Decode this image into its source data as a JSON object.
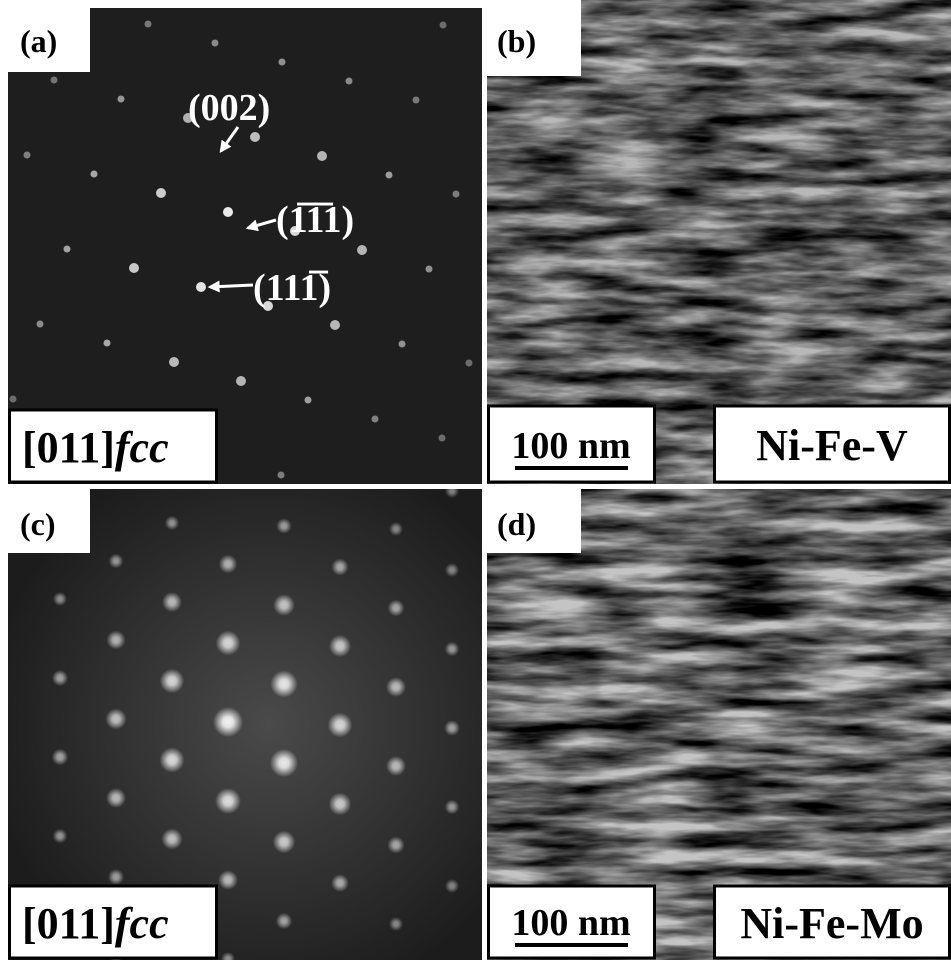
{
  "panels": [
    {
      "label": "(a)",
      "annotations": [
        "(002)",
        "(1̅1̅1)",
        "(111̅)"
      ],
      "zone_axis": "[011]",
      "zone_axis_suffix": "fcc"
    },
    {
      "label": "(b)",
      "scale_bar": "100 nm",
      "material": "Ni-Fe-V"
    },
    {
      "label": "(c)",
      "zone_axis": "[011]",
      "zone_axis_suffix": "fcc"
    },
    {
      "label": "(d)",
      "scale_bar": "100 nm",
      "material": "Ni-Fe-Mo"
    }
  ]
}
